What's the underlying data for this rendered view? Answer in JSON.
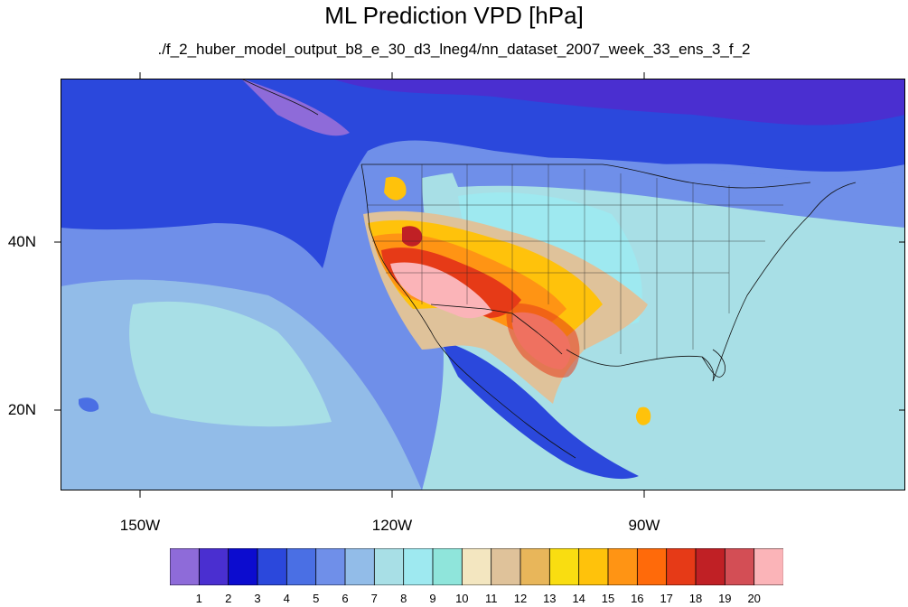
{
  "title": "ML Prediction VPD [hPa]",
  "subtitle": "./f_2_huber_model_output_b8_e_30_d3_lneg4/nn_dataset_2007_week_33_ens_3_f_2",
  "map": {
    "region": "North America / Eastern Pacific",
    "lon_range": [
      -160,
      -60
    ],
    "lat_range": [
      11,
      60
    ],
    "lat_ticks": [
      "40N",
      "20N"
    ],
    "lon_ticks": [
      "150W",
      "120W",
      "90W"
    ],
    "variable": "Vapor pressure deficit (hPa)"
  },
  "colorbar": {
    "colors": [
      "#8e6bd9",
      "#4a2fd0",
      "#0c0ccf",
      "#2b48dc",
      "#4a6fe4",
      "#6f8fe9",
      "#92bce8",
      "#a8dfe6",
      "#9ee9f0",
      "#8fe5db",
      "#f3e6c0",
      "#dfc29a",
      "#e8b65a",
      "#f9dd11",
      "#ffc20b",
      "#ff9414",
      "#ff6a0a",
      "#e63a17",
      "#c02025",
      "#d34e55",
      "#fbb4b8"
    ],
    "labels": [
      "1",
      "2",
      "3",
      "4",
      "5",
      "6",
      "7",
      "8",
      "9",
      "10",
      "11",
      "12",
      "13",
      "14",
      "15",
      "16",
      "17",
      "18",
      "19",
      "20"
    ]
  }
}
